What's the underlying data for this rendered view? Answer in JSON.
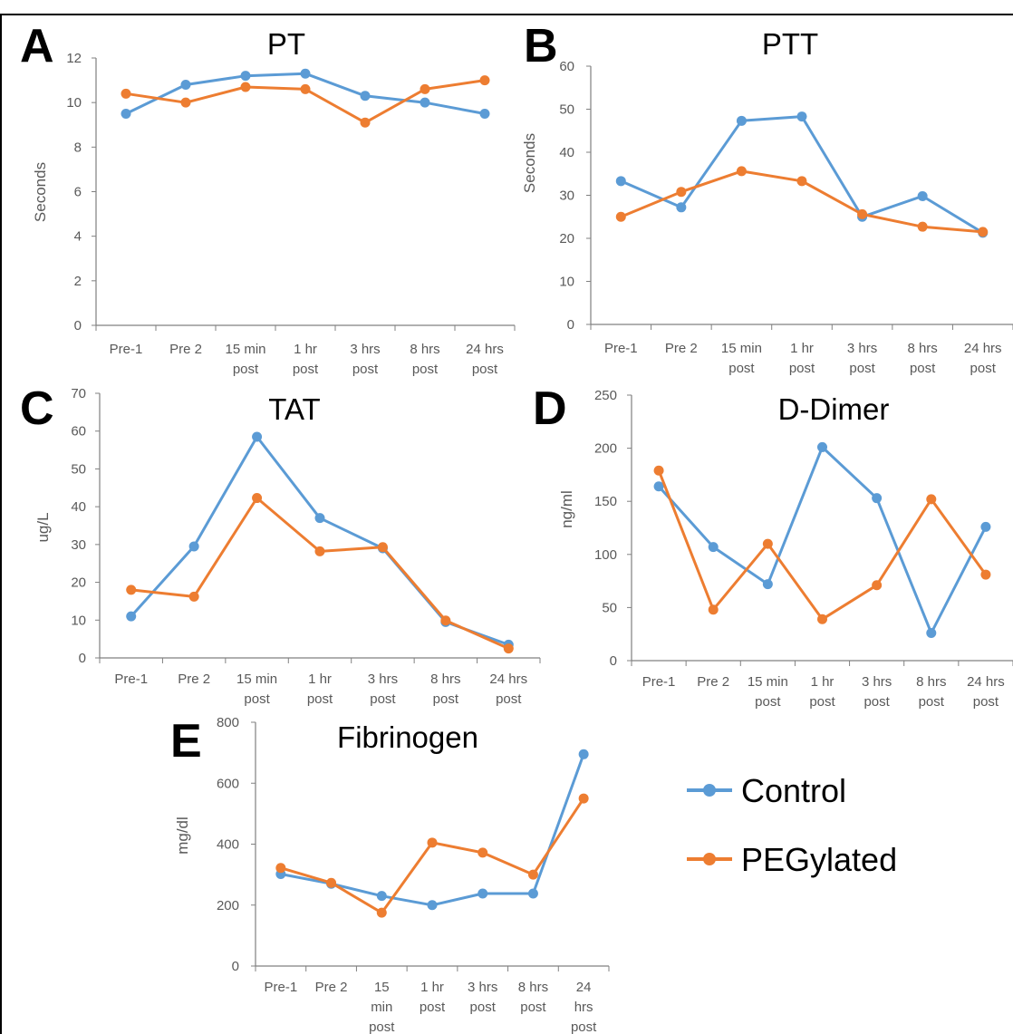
{
  "colors": {
    "control": "#5b9bd5",
    "pegylated": "#ed7d31",
    "axis": "#808080"
  },
  "legend": [
    {
      "key": "control",
      "label": "Control"
    },
    {
      "key": "pegylated",
      "label": "PEGylated"
    }
  ],
  "chart_data": [
    {
      "id": "A",
      "letter": "A",
      "type": "line",
      "title": "PT",
      "ylabel": "Seconds",
      "ylim": [
        0,
        12
      ],
      "yticks": [
        0,
        2,
        4,
        6,
        8,
        10,
        12
      ],
      "categories": [
        [
          "Pre-1"
        ],
        [
          "Pre 2"
        ],
        [
          "15 min",
          "post"
        ],
        [
          "1 hr",
          "post"
        ],
        [
          "3 hrs",
          "post"
        ],
        [
          "8 hrs",
          "post"
        ],
        [
          "24 hrs",
          "post"
        ]
      ],
      "series": [
        {
          "key": "control",
          "values": [
            9.5,
            10.8,
            11.2,
            11.3,
            10.3,
            10.0,
            9.5
          ]
        },
        {
          "key": "pegylated",
          "values": [
            10.4,
            10.0,
            10.7,
            10.6,
            9.1,
            10.6,
            11.0
          ]
        }
      ]
    },
    {
      "id": "B",
      "letter": "B",
      "type": "line",
      "title": "PTT",
      "ylabel": "Seconds",
      "ylim": [
        0,
        60
      ],
      "yticks": [
        0,
        10,
        20,
        30,
        40,
        50,
        60
      ],
      "categories": [
        [
          "Pre-1"
        ],
        [
          "Pre 2"
        ],
        [
          "15 min",
          "post"
        ],
        [
          "1 hr",
          "post"
        ],
        [
          "3 hrs",
          "post"
        ],
        [
          "8 hrs",
          "post"
        ],
        [
          "24 hrs",
          "post"
        ]
      ],
      "series": [
        {
          "key": "control",
          "values": [
            33.3,
            27.2,
            47.3,
            48.3,
            25.0,
            29.8,
            21.3
          ]
        },
        {
          "key": "pegylated",
          "values": [
            25.0,
            30.8,
            35.6,
            33.3,
            25.6,
            22.7,
            21.5
          ]
        }
      ]
    },
    {
      "id": "C",
      "letter": "C",
      "type": "line",
      "title": "TAT",
      "ylabel": "ug/L",
      "ylim": [
        0,
        70
      ],
      "yticks": [
        0,
        10,
        20,
        30,
        40,
        50,
        60,
        70
      ],
      "categories": [
        [
          "Pre-1"
        ],
        [
          "Pre 2"
        ],
        [
          "15 min",
          "post"
        ],
        [
          "1 hr",
          "post"
        ],
        [
          "3 hrs",
          "post"
        ],
        [
          "8 hrs",
          "post"
        ],
        [
          "24 hrs",
          "post"
        ]
      ],
      "series": [
        {
          "key": "control",
          "values": [
            11.0,
            29.5,
            58.5,
            37.0,
            29.0,
            9.5,
            3.5
          ]
        },
        {
          "key": "pegylated",
          "values": [
            18.0,
            16.2,
            42.3,
            28.2,
            29.3,
            9.9,
            2.5
          ]
        }
      ]
    },
    {
      "id": "D",
      "letter": "D",
      "type": "line",
      "title": "D-Dimer",
      "ylabel": "ng/ml",
      "ylim": [
        0,
        250
      ],
      "yticks": [
        0,
        50,
        100,
        150,
        200,
        250
      ],
      "categories": [
        [
          "Pre-1"
        ],
        [
          "Pre 2"
        ],
        [
          "15 min",
          "post"
        ],
        [
          "1 hr",
          "post"
        ],
        [
          "3 hrs",
          "post"
        ],
        [
          "8 hrs",
          "post"
        ],
        [
          "24 hrs",
          "post"
        ]
      ],
      "series": [
        {
          "key": "control",
          "values": [
            164,
            107,
            72,
            201,
            153,
            26,
            126
          ]
        },
        {
          "key": "pegylated",
          "values": [
            179,
            48,
            110,
            39,
            71,
            152,
            81
          ]
        }
      ]
    },
    {
      "id": "E",
      "letter": "E",
      "type": "line",
      "title": "Fibrinogen",
      "ylabel": "mg/dl",
      "ylim": [
        0,
        800
      ],
      "yticks": [
        0,
        200,
        400,
        600,
        800
      ],
      "categories": [
        [
          "Pre-1"
        ],
        [
          "Pre 2"
        ],
        [
          "15",
          "min",
          "post"
        ],
        [
          "1 hr",
          "post"
        ],
        [
          "3 hrs",
          "post"
        ],
        [
          "8 hrs",
          "post"
        ],
        [
          "24",
          "hrs",
          "post"
        ]
      ],
      "series": [
        {
          "key": "control",
          "values": [
            302,
            270,
            230,
            200,
            238,
            238,
            695
          ]
        },
        {
          "key": "pegylated",
          "values": [
            322,
            273,
            175,
            405,
            372,
            300,
            550
          ]
        }
      ]
    }
  ]
}
